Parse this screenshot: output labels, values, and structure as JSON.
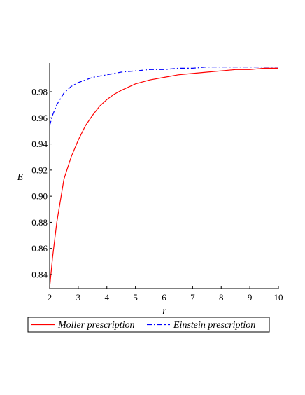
{
  "chart_data": {
    "type": "line",
    "xlabel": "r",
    "ylabel": "E",
    "xlim": [
      2,
      10
    ],
    "ylim": [
      0.83,
      1.0
    ],
    "xticks": [
      2,
      3,
      4,
      5,
      6,
      7,
      8,
      9,
      10
    ],
    "yticks": [
      "0.84",
      "0.86",
      "0.88",
      "0.90",
      "0.92",
      "0.94",
      "0.96",
      "0.98"
    ],
    "legend_position": "bottom",
    "series": [
      {
        "name": "Moller prescription",
        "color": "#ff0000",
        "style": "solid",
        "x": [
          2.0,
          2.1,
          2.25,
          2.5,
          2.75,
          3.0,
          3.25,
          3.5,
          3.75,
          4.0,
          4.25,
          4.5,
          5.0,
          5.5,
          6.0,
          6.5,
          7.0,
          7.5,
          8.0,
          8.5,
          9.0,
          9.5,
          10.0
        ],
        "y": [
          0.83,
          0.853,
          0.88,
          0.913,
          0.93,
          0.943,
          0.954,
          0.962,
          0.969,
          0.974,
          0.978,
          0.981,
          0.986,
          0.989,
          0.991,
          0.993,
          0.994,
          0.995,
          0.996,
          0.997,
          0.997,
          0.998,
          0.998
        ]
      },
      {
        "name": "Einstein prescription",
        "color": "#0000ff",
        "style": "dashdot",
        "x": [
          2.0,
          2.1,
          2.25,
          2.5,
          2.75,
          3.0,
          3.25,
          3.5,
          3.75,
          4.0,
          4.5,
          5.0,
          5.5,
          6.0,
          6.5,
          7.0,
          7.5,
          8.0,
          8.5,
          9.0,
          9.5,
          10.0
        ],
        "y": [
          0.954,
          0.962,
          0.97,
          0.979,
          0.984,
          0.987,
          0.989,
          0.991,
          0.992,
          0.993,
          0.995,
          0.996,
          0.997,
          0.997,
          0.998,
          0.998,
          0.999,
          0.999,
          0.999,
          0.999,
          0.999,
          0.999
        ]
      }
    ]
  }
}
